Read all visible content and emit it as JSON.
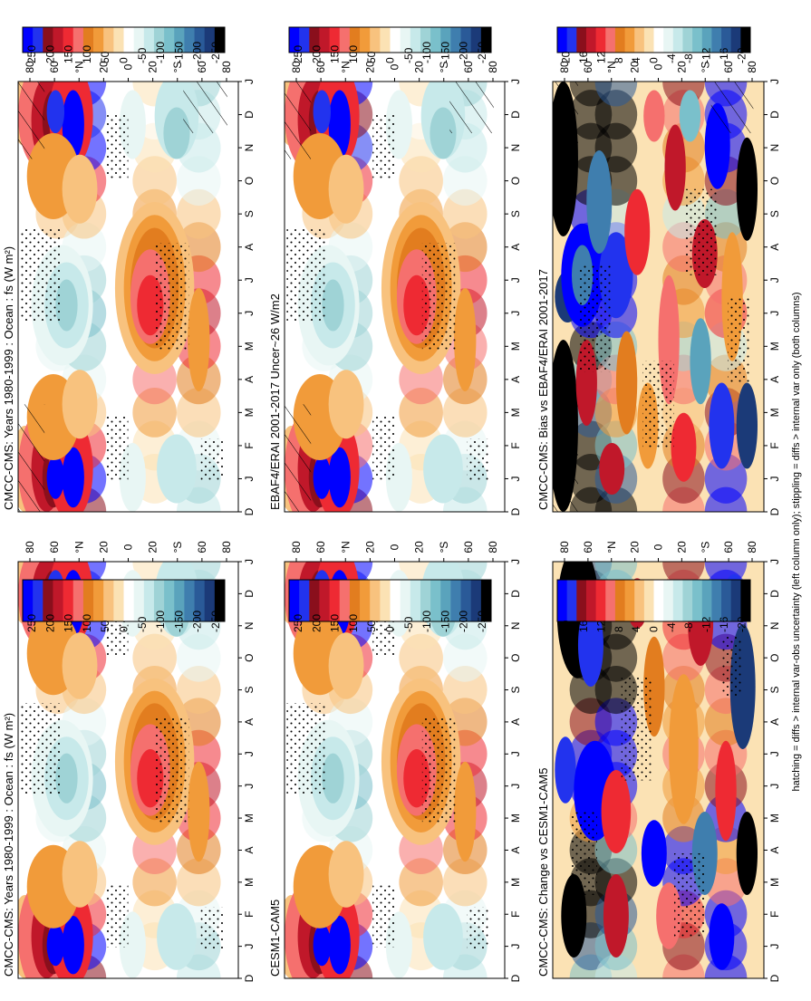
{
  "figure": {
    "footnote": "hatching = diffs > internal var-obs uncertainty (left column only); stippling = diffs > internal var only (both columns)"
  },
  "chart_data": [
    {
      "id": "p1",
      "type": "heatmap",
      "title": "CMCC-CMS: Years 1980-1999 : Ocean : fs (W m²)",
      "months": [
        "D",
        "J",
        "F",
        "M",
        "A",
        "M",
        "J",
        "J",
        "A",
        "S",
        "O",
        "N",
        "D",
        "J"
      ],
      "lat_ticks": [
        "80",
        "60",
        "°N",
        "20",
        "0",
        "20",
        "°S",
        "60",
        "80"
      ],
      "colorbar": [
        "250",
        "200",
        "150",
        "100",
        "50",
        "0",
        "-50",
        "-100",
        "-150",
        "-200",
        "-250"
      ],
      "palette": "main",
      "pattern": "clim",
      "hatch": true,
      "row_band_lat_cells": [
        {
          "lat": "60N",
          "values": [
            120,
            160,
            130,
            30,
            -20,
            -40,
            -60,
            -50,
            -10,
            40,
            120,
            170,
            130,
            160
          ]
        },
        {
          "lat": "40N",
          "values": [
            210,
            260,
            140,
            40,
            -30,
            -80,
            -110,
            -90,
            -30,
            40,
            150,
            240,
            220,
            260
          ]
        },
        {
          "lat": "20S",
          "values": [
            0,
            10,
            20,
            60,
            110,
            160,
            180,
            170,
            120,
            70,
            30,
            10,
            0,
            10
          ]
        },
        {
          "lat": "60S",
          "values": [
            -60,
            -80,
            -40,
            40,
            90,
            140,
            170,
            150,
            90,
            40,
            -30,
            -70,
            -60,
            -80
          ]
        }
      ]
    },
    {
      "id": "p2",
      "type": "heatmap",
      "title": "CMCC-CMS: Years 1980-1999 : Ocean : fs (W m²)",
      "months": [
        "D",
        "J",
        "F",
        "M",
        "A",
        "M",
        "J",
        "J",
        "A",
        "S",
        "O",
        "N",
        "D",
        "J"
      ],
      "lat_ticks": [
        "80",
        "60",
        "°N",
        "20",
        "0",
        "20",
        "°S",
        "60",
        "80"
      ],
      "colorbar": [
        "250",
        "200",
        "150",
        "100",
        "50",
        "0",
        "-50",
        "-100",
        "-150",
        "-200",
        "-250"
      ],
      "palette": "main",
      "pattern": "clim",
      "hatch": false,
      "row_band_lat_cells": [
        {
          "lat": "60N",
          "values": [
            120,
            160,
            130,
            30,
            -20,
            -40,
            -60,
            -50,
            -10,
            40,
            120,
            170,
            130,
            160
          ]
        },
        {
          "lat": "40N",
          "values": [
            210,
            260,
            140,
            40,
            -30,
            -80,
            -110,
            -90,
            -30,
            40,
            150,
            240,
            220,
            260
          ]
        },
        {
          "lat": "20S",
          "values": [
            0,
            10,
            20,
            60,
            110,
            160,
            180,
            170,
            120,
            70,
            30,
            10,
            0,
            10
          ]
        },
        {
          "lat": "60S",
          "values": [
            -60,
            -80,
            -40,
            40,
            90,
            140,
            170,
            150,
            90,
            40,
            -30,
            -70,
            -60,
            -80
          ]
        }
      ]
    },
    {
      "id": "p3",
      "type": "heatmap",
      "title": "EBAF4/ERAI 2001-2017 Uncer~26 W/m2",
      "months": [
        "D",
        "J",
        "F",
        "M",
        "A",
        "M",
        "J",
        "J",
        "A",
        "S",
        "O",
        "N",
        "D",
        "J"
      ],
      "lat_ticks": [
        "80",
        "60",
        "°N",
        "20",
        "0",
        "20",
        "°S",
        "60",
        "80"
      ],
      "colorbar": [
        "250",
        "200",
        "150",
        "100",
        "50",
        "0",
        "-50",
        "-100",
        "-150",
        "-200",
        "-250"
      ],
      "palette": "main",
      "pattern": "clim",
      "hatch": true,
      "row_band_lat_cells": [
        {
          "lat": "60N",
          "values": [
            110,
            150,
            120,
            30,
            -20,
            -40,
            -60,
            -50,
            -10,
            40,
            110,
            160,
            120,
            150
          ]
        },
        {
          "lat": "40N",
          "values": [
            200,
            250,
            130,
            40,
            -30,
            -80,
            -100,
            -90,
            -30,
            40,
            140,
            230,
            210,
            250
          ]
        },
        {
          "lat": "20S",
          "values": [
            0,
            10,
            20,
            60,
            110,
            150,
            170,
            160,
            120,
            70,
            30,
            10,
            0,
            10
          ]
        },
        {
          "lat": "60S",
          "values": [
            -60,
            -80,
            -40,
            40,
            90,
            130,
            160,
            150,
            90,
            40,
            -30,
            -70,
            -60,
            -80
          ]
        }
      ]
    },
    {
      "id": "p4",
      "type": "heatmap",
      "title": "CESM1-CAM5",
      "months": [
        "D",
        "J",
        "F",
        "M",
        "A",
        "M",
        "J",
        "J",
        "A",
        "S",
        "O",
        "N",
        "D",
        "J"
      ],
      "lat_ticks": [
        "80",
        "60",
        "°N",
        "20",
        "0",
        "20",
        "°S",
        "60",
        "80"
      ],
      "colorbar": [
        "250",
        "200",
        "150",
        "100",
        "50",
        "0",
        "-50",
        "-100",
        "-150",
        "-200",
        "-250"
      ],
      "palette": "main",
      "pattern": "clim",
      "hatch": false,
      "row_band_lat_cells": [
        {
          "lat": "60N",
          "values": [
            120,
            160,
            130,
            30,
            -20,
            -40,
            -60,
            -50,
            -10,
            40,
            120,
            170,
            130,
            160
          ]
        },
        {
          "lat": "40N",
          "values": [
            210,
            260,
            140,
            40,
            -30,
            -80,
            -110,
            -90,
            -30,
            40,
            150,
            240,
            220,
            260
          ]
        },
        {
          "lat": "20S",
          "values": [
            0,
            10,
            20,
            60,
            110,
            160,
            190,
            170,
            120,
            70,
            30,
            10,
            0,
            10
          ]
        },
        {
          "lat": "60S",
          "values": [
            -60,
            -80,
            -40,
            40,
            90,
            140,
            170,
            150,
            90,
            40,
            -30,
            -70,
            -60,
            -80
          ]
        }
      ]
    },
    {
      "id": "p5",
      "type": "heatmap",
      "title": "CMCC-CMS: Bias vs EBAF4/ERAI 2001-2017",
      "months": [
        "D",
        "J",
        "F",
        "M",
        "A",
        "M",
        "J",
        "J",
        "A",
        "S",
        "O",
        "N",
        "D",
        "J"
      ],
      "lat_ticks": [
        "80",
        "60",
        "°N",
        "20",
        "0",
        "20",
        "°S",
        "60",
        "80"
      ],
      "colorbar": [
        "20",
        "16",
        "12",
        "8",
        "4",
        "0",
        "-4",
        "-8",
        "-12",
        "-16",
        "-20"
      ],
      "palette": "diff",
      "pattern": "bias",
      "hatch": true,
      "row_band_lat_cells": [
        {
          "lat": "80N",
          "values": [
            -25,
            -25,
            -20,
            -15,
            -10,
            -20,
            20,
            20,
            25,
            20,
            -25,
            -25,
            -25,
            -25
          ]
        },
        {
          "lat": "60N",
          "values": [
            -20,
            -15,
            -10,
            5,
            10,
            -10,
            25,
            25,
            20,
            -5,
            -20,
            -20,
            -20,
            -15
          ]
        },
        {
          "lat": "20S",
          "values": [
            10,
            15,
            8,
            4,
            10,
            -8,
            6,
            8,
            10,
            -6,
            5,
            8,
            10,
            15
          ]
        },
        {
          "lat": "60S",
          "values": [
            20,
            25,
            10,
            15,
            8,
            -5,
            12,
            10,
            8,
            -10,
            15,
            20,
            20,
            25
          ]
        }
      ]
    },
    {
      "id": "p6",
      "type": "heatmap",
      "title": "CMCC-CMS: Change vs CESM1-CAM5",
      "months": [
        "D",
        "J",
        "F",
        "M",
        "A",
        "M",
        "J",
        "J",
        "A",
        "S",
        "O",
        "N",
        "D",
        "J"
      ],
      "lat_ticks": [
        "80",
        "60",
        "°N",
        "20",
        "0",
        "20",
        "°S",
        "60",
        "80"
      ],
      "colorbar": [
        "20",
        "16",
        "12",
        "8",
        "4",
        "0",
        "-4",
        "-8",
        "-12",
        "-16",
        "-20"
      ],
      "palette": "diff",
      "pattern": "change",
      "hatch": false,
      "row_band_lat_cells": [
        {
          "lat": "80N",
          "values": [
            -10,
            -15,
            -20,
            -25,
            -25,
            5,
            20,
            20,
            15,
            -25,
            -25,
            -25,
            -20,
            -15
          ]
        },
        {
          "lat": "60N",
          "values": [
            -5,
            -10,
            -15,
            -20,
            -10,
            10,
            25,
            25,
            20,
            -20,
            -25,
            -20,
            -10,
            -10
          ]
        },
        {
          "lat": "20S",
          "values": [
            10,
            15,
            12,
            20,
            25,
            8,
            6,
            10,
            5,
            8,
            10,
            12,
            10,
            15
          ]
        },
        {
          "lat": "60S",
          "values": [
            20,
            25,
            20,
            10,
            5,
            20,
            15,
            10,
            8,
            10,
            15,
            20,
            20,
            25
          ]
        }
      ]
    }
  ]
}
